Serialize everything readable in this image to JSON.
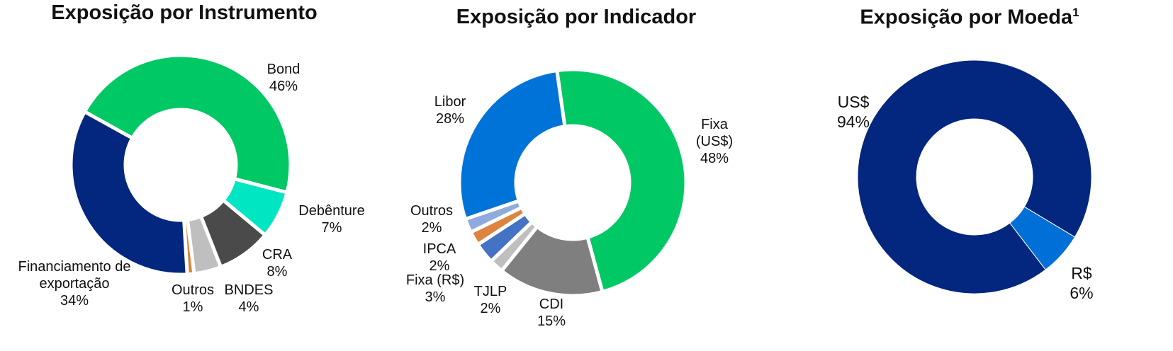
{
  "chart_data": [
    {
      "type": "pie",
      "variant": "donut",
      "title": "Exposição por Instrumento",
      "slices": [
        {
          "label": "Bond",
          "value": 46,
          "display": "46%",
          "color": "#00c864"
        },
        {
          "label": "Debênture",
          "value": 7,
          "display": "7%",
          "color": "#00e6c3"
        },
        {
          "label": "CRA",
          "value": 8,
          "display": "8%",
          "color": "#4a4a4a"
        },
        {
          "label": "BNDES",
          "value": 4,
          "display": "4%",
          "color": "#bfbfbf"
        },
        {
          "label": "Outros",
          "value": 1,
          "display": "1%",
          "color": "#d9823b"
        },
        {
          "label": "Financiamento de exportação",
          "value": 34,
          "display": "34%",
          "color": "#03267e"
        }
      ]
    },
    {
      "type": "pie",
      "variant": "donut",
      "title": "Exposição por Indicador",
      "slices": [
        {
          "label": "Fixa (US$)",
          "value": 48,
          "display": "48%",
          "color": "#00c864"
        },
        {
          "label": "CDI",
          "value": 15,
          "display": "15%",
          "color": "#7f7f7f"
        },
        {
          "label": "TJLP",
          "value": 2,
          "display": "2%",
          "color": "#bfbfbf"
        },
        {
          "label": "Fixa (R$)",
          "value": 3,
          "display": "3%",
          "color": "#4472c4"
        },
        {
          "label": "IPCA",
          "value": 2,
          "display": "2%",
          "color": "#dd8440"
        },
        {
          "label": "Outros",
          "value": 2,
          "display": "2%",
          "color": "#8faadc"
        },
        {
          "label": "Libor",
          "value": 28,
          "display": "28%",
          "color": "#0073d9"
        }
      ]
    },
    {
      "type": "pie",
      "variant": "donut",
      "title": "Exposição por Moeda",
      "title_superscript": "1",
      "slices": [
        {
          "label": "US$",
          "value": 94,
          "display": "94%",
          "color": "#03267e"
        },
        {
          "label": "R$",
          "value": 6,
          "display": "6%",
          "color": "#0070d8"
        }
      ]
    }
  ]
}
